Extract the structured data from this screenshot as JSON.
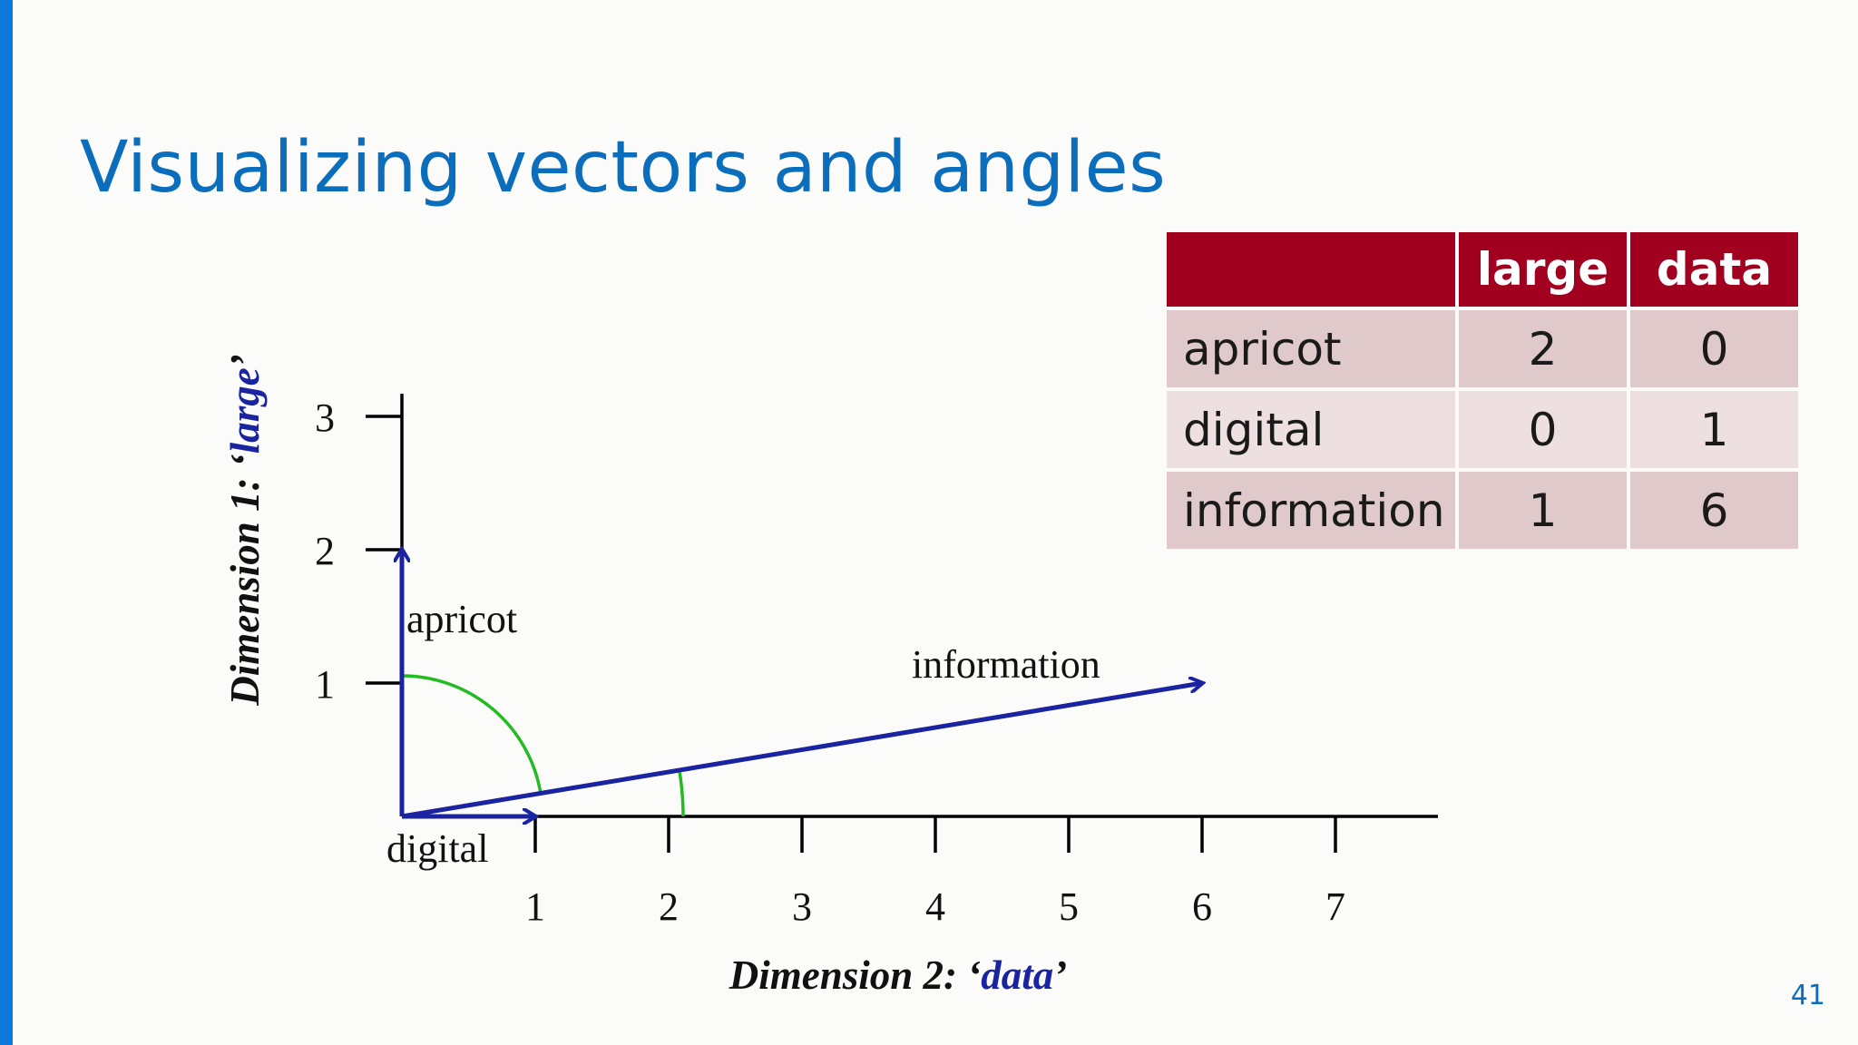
{
  "slide": {
    "title": "Visualizing vectors and angles",
    "number": "41"
  },
  "table": {
    "headers": [
      "",
      "large",
      "data"
    ],
    "rows": [
      {
        "word": "apricot",
        "large": "2",
        "data": "0"
      },
      {
        "word": "digital",
        "large": "0",
        "data": "1"
      },
      {
        "word": "information",
        "large": "1",
        "data": "6"
      }
    ]
  },
  "diagram": {
    "y_axis": {
      "label_prefix": "Dimension 1: ‘",
      "label_term": "large",
      "label_suffix": "’",
      "ticks": [
        "1",
        "2",
        "3"
      ]
    },
    "x_axis": {
      "label_prefix": "Dimension 2: ‘",
      "label_term": "data",
      "label_suffix": "’",
      "ticks": [
        "1",
        "2",
        "3",
        "4",
        "5",
        "6",
        "7"
      ]
    },
    "vectors": [
      {
        "label": "apricot",
        "large": 2,
        "data": 0
      },
      {
        "label": "digital",
        "large": 0,
        "data": 1
      },
      {
        "label": "information",
        "large": 1,
        "data": 6
      }
    ],
    "colors": {
      "vector": "#1a23a0",
      "angle_arc": "#22bb22",
      "axis": "#000000",
      "term": "#1a23a0"
    }
  }
}
